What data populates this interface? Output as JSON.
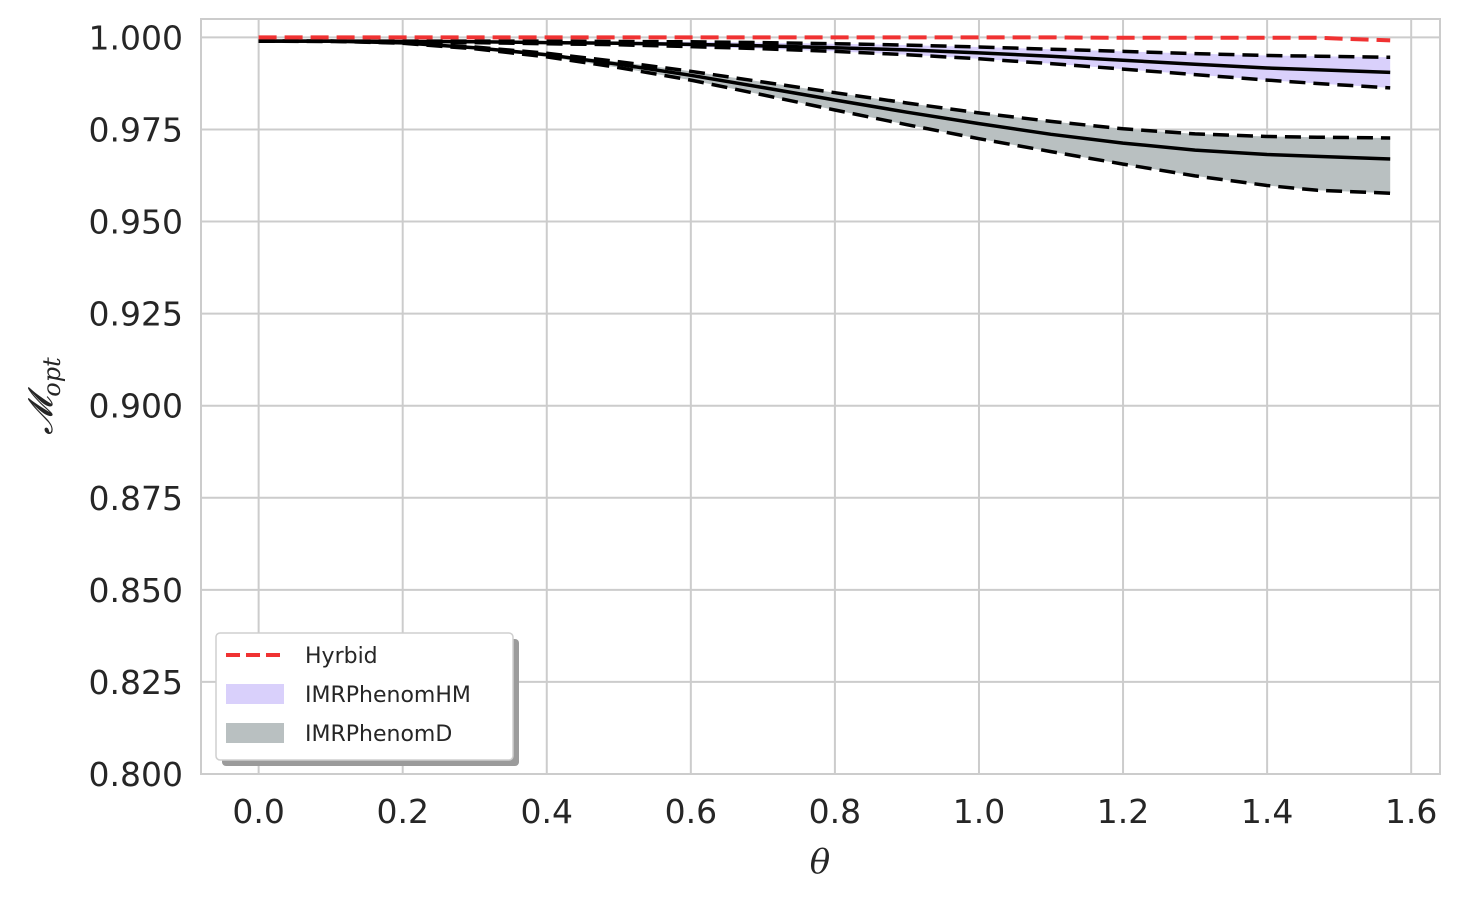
{
  "chart_data": {
    "type": "line",
    "xlabel": "θ",
    "ylabel": "𝓜opt",
    "ylabel_main": "𝓜",
    "ylabel_sub": "opt",
    "xlim": [
      -0.08,
      1.64
    ],
    "ylim": [
      0.8,
      1.005
    ],
    "xticks": [
      "0.0",
      "0.2",
      "0.4",
      "0.6",
      "0.8",
      "1.0",
      "1.2",
      "1.4",
      "1.6"
    ],
    "xtick_values": [
      0.0,
      0.2,
      0.4,
      0.6,
      0.8,
      1.0,
      1.2,
      1.4,
      1.6
    ],
    "yticks": [
      "0.800",
      "0.825",
      "0.850",
      "0.875",
      "0.900",
      "0.925",
      "0.950",
      "0.975",
      "1.000"
    ],
    "ytick_values": [
      0.8,
      0.825,
      0.85,
      0.875,
      0.9,
      0.925,
      0.95,
      0.975,
      1.0
    ],
    "grid": true,
    "legend_position": "lower-left",
    "x": [
      0.0,
      0.1,
      0.2,
      0.3,
      0.4,
      0.5,
      0.6,
      0.7,
      0.8,
      0.9,
      1.0,
      1.1,
      1.2,
      1.3,
      1.4,
      1.47,
      1.5708
    ],
    "series": [
      {
        "name": "Hyrbid",
        "kind": "line",
        "style": "dashed",
        "color": "#f03232",
        "values": [
          1.0,
          1.0,
          1.0,
          1.0,
          1.0,
          1.0,
          1.0,
          1.0,
          1.0,
          1.0,
          1.0,
          1.0,
          0.9999,
          0.9999,
          0.9999,
          0.9999,
          0.9992
        ]
      },
      {
        "name": "IMRPhenomHM",
        "kind": "band",
        "color": "#d9d0fb",
        "median": [
          0.999,
          0.999,
          0.9989,
          0.9988,
          0.9986,
          0.9984,
          0.9981,
          0.9977,
          0.9972,
          0.9966,
          0.9958,
          0.9949,
          0.9938,
          0.9927,
          0.9917,
          0.9912,
          0.9905
        ],
        "upper": [
          0.999,
          0.999,
          0.999,
          0.999,
          0.999,
          0.9989,
          0.9988,
          0.9986,
          0.9983,
          0.9979,
          0.9974,
          0.9968,
          0.9962,
          0.9956,
          0.9951,
          0.9949,
          0.9946
        ],
        "lower": [
          0.999,
          0.9989,
          0.9988,
          0.9986,
          0.9983,
          0.998,
          0.9975,
          0.9969,
          0.9962,
          0.9953,
          0.9942,
          0.9929,
          0.9914,
          0.9899,
          0.9884,
          0.9875,
          0.9863
        ]
      },
      {
        "name": "IMRPhenomD",
        "kind": "band",
        "color": "#b9c0c1",
        "median": [
          0.999,
          0.999,
          0.9985,
          0.9972,
          0.9953,
          0.9927,
          0.9897,
          0.9864,
          0.983,
          0.9797,
          0.9766,
          0.9737,
          0.9713,
          0.9694,
          0.9682,
          0.9677,
          0.967
        ],
        "upper": [
          0.999,
          0.999,
          0.9986,
          0.9974,
          0.9957,
          0.9934,
          0.9908,
          0.9879,
          0.985,
          0.9822,
          0.9795,
          0.9772,
          0.9752,
          0.9738,
          0.9731,
          0.9729,
          0.9727
        ],
        "lower": [
          0.999,
          0.999,
          0.9984,
          0.9969,
          0.9947,
          0.9918,
          0.9884,
          0.9844,
          0.9803,
          0.9763,
          0.9725,
          0.969,
          0.9656,
          0.9624,
          0.9598,
          0.9585,
          0.9577
        ]
      }
    ]
  }
}
